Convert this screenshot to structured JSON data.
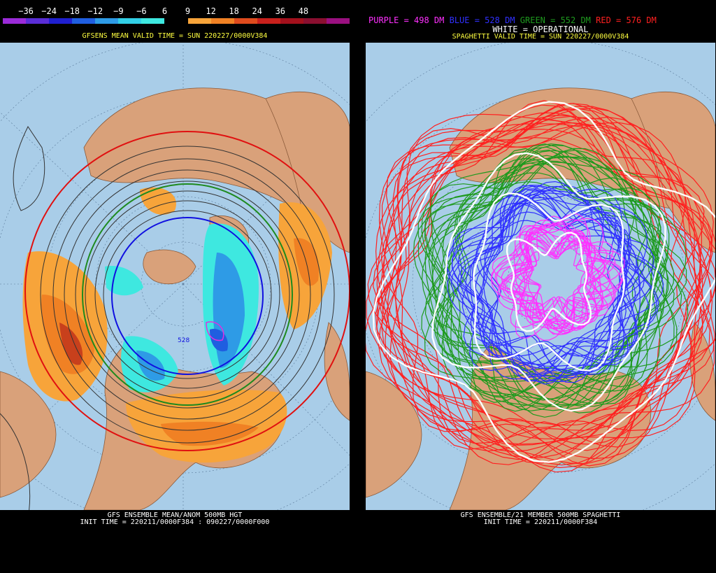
{
  "left": {
    "scale_labels": [
      "−36",
      "−24",
      "−18",
      "−12",
      "−9",
      "−6",
      "6",
      "9",
      "12",
      "18",
      "24",
      "36",
      "48"
    ],
    "scale_colors": [
      "#9b2bd9",
      "#5a2dd6",
      "#1f1fd0",
      "#1f5ee0",
      "#2e9be6",
      "#32cfe6",
      "#3ee8e0",
      "#000000",
      "#f7a43a",
      "#f08124",
      "#de4b1d",
      "#c8201c",
      "#a3101c",
      "#8a0f30",
      "#9a1080"
    ],
    "valid_time": "GFSENS MEAN VALID TIME = SUN 220227/0000V384",
    "contour_label": "528",
    "caption_line1": "GFS ENSEMBLE MEAN/ANOM 500MB HGT",
    "caption_line2": "INIT TIME = 220211/0000F384 : 090227/0000F000"
  },
  "right": {
    "legend": [
      {
        "text": "PURPLE = 498 DM",
        "color": "#ff30ff"
      },
      {
        "text": "BLUE = 528 DM",
        "color": "#3030ff"
      },
      {
        "text": "GREEN = 552 DM",
        "color": "#1e9a1e"
      },
      {
        "text": "RED = 576 DM",
        "color": "#ff2020"
      }
    ],
    "operational": "WHITE = OPERATIONAL",
    "valid_time": "SPAGHETTI VALID TIME = SUN 220227/0000V384",
    "caption_line1": "GFS ENSEMBLE/21 MEMBER 500MB SPAGHETTI",
    "caption_line2": "INIT TIME = 220211/0000F384"
  },
  "colors": {
    "ocean": "#a9cde8",
    "land": "#d9a17a",
    "title_yellow": "#ffff40"
  }
}
